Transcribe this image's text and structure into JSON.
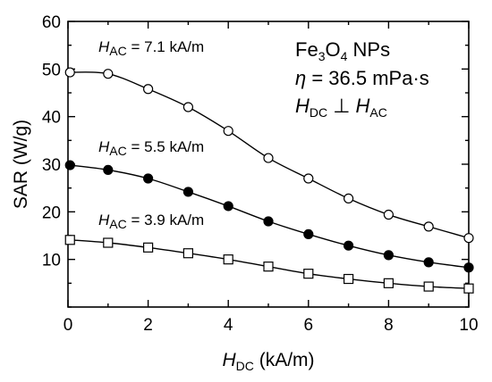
{
  "chart_data": {
    "type": "line",
    "xlabel": {
      "main": "H",
      "sub": "DC",
      "unit": " (kA/m)"
    },
    "ylabel": "SAR (W/g)",
    "xlim": [
      0,
      10
    ],
    "ylim": [
      0,
      60
    ],
    "x_ticks": [
      0,
      2,
      4,
      6,
      8,
      10
    ],
    "y_ticks": [
      10,
      20,
      30,
      40,
      50,
      60
    ],
    "grid": false,
    "info_box": {
      "line1": {
        "pre": "Fe",
        "sub1": "3",
        "mid": "O",
        "sub2": "4",
        "post": " NPs"
      },
      "line2": {
        "sym": "η",
        "text": " = 36.5 mPa·s"
      },
      "line3": {
        "a": "H",
        "a_sub": "DC",
        "op": " ⊥ ",
        "b": "H",
        "b_sub": "AC"
      }
    },
    "series": [
      {
        "label": {
          "sym": "H",
          "sub": "AC",
          "text": " = 7.1 kA/m"
        },
        "marker": "open-circle",
        "x": [
          0.05,
          1,
          2,
          3,
          4,
          5,
          6,
          7,
          8,
          9,
          10
        ],
        "y": [
          49.3,
          49.0,
          45.8,
          42.0,
          37.0,
          31.3,
          27.0,
          22.8,
          19.4,
          16.9,
          14.5
        ]
      },
      {
        "label": {
          "sym": "H",
          "sub": "AC",
          "text": " = 5.5 kA/m"
        },
        "marker": "filled-circle",
        "x": [
          0.05,
          1,
          2,
          3,
          4,
          5,
          6,
          7,
          8,
          9,
          10
        ],
        "y": [
          29.8,
          28.8,
          27.0,
          24.2,
          21.2,
          18.0,
          15.3,
          12.9,
          10.9,
          9.4,
          8.3
        ]
      },
      {
        "label": {
          "sym": "H",
          "sub": "AC",
          "text": " = 3.9 kA/m"
        },
        "marker": "open-square",
        "x": [
          0.05,
          1,
          2,
          3,
          4,
          5,
          6,
          7,
          8,
          9,
          10
        ],
        "y": [
          14.1,
          13.5,
          12.5,
          11.3,
          10.0,
          8.5,
          7.0,
          5.9,
          5.0,
          4.3,
          3.9
        ]
      }
    ]
  }
}
